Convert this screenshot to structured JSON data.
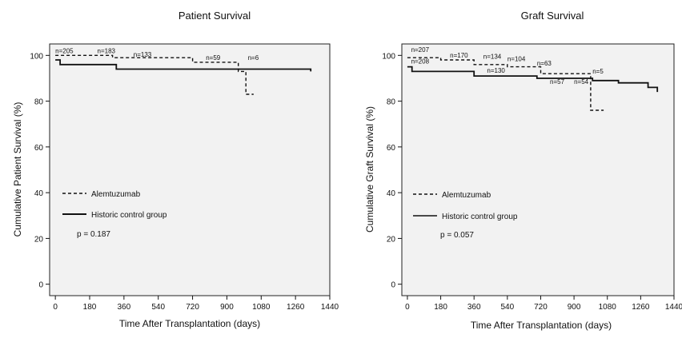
{
  "chart_data": [
    {
      "type": "line",
      "subtype": "kaplan-meier step plot",
      "title": "Patient Survival",
      "xlabel": "Time After Transplantation (days)",
      "ylabel": "Cumulative Patient Survival (%)",
      "xlim": [
        -30,
        1440
      ],
      "ylim": [
        -5,
        105
      ],
      "xticks": [
        0,
        180,
        360,
        540,
        720,
        900,
        1080,
        1260,
        1440
      ],
      "yticks": [
        0,
        20,
        40,
        60,
        80,
        100
      ],
      "grid": false,
      "legend_position": "lower-left",
      "pvalue": "p = 0.187",
      "series": [
        {
          "name": "Alemtuzumab",
          "style": "dashed",
          "points": [
            [
              0,
              100
            ],
            [
              300,
              100
            ],
            [
              300,
              99
            ],
            [
              720,
              99
            ],
            [
              720,
              97
            ],
            [
              960,
              97
            ],
            [
              960,
              93
            ],
            [
              1000,
              93
            ],
            [
              1000,
              83
            ],
            [
              1040,
              83
            ]
          ]
        },
        {
          "name": "Historic control group",
          "style": "solid",
          "points": [
            [
              0,
              98
            ],
            [
              25,
              98
            ],
            [
              25,
              96
            ],
            [
              320,
              96
            ],
            [
              320,
              94
            ],
            [
              1340,
              94
            ],
            [
              1340,
              93
            ]
          ]
        }
      ],
      "annotations": [
        {
          "text": "n=205",
          "x": 0,
          "y": 101
        },
        {
          "text": "n=183",
          "x": 220,
          "y": 101
        },
        {
          "text": "n=133",
          "x": 410,
          "y": 99.5
        },
        {
          "text": "n=59",
          "x": 790,
          "y": 98
        },
        {
          "text": "n=6",
          "x": 1010,
          "y": 98
        }
      ]
    },
    {
      "type": "line",
      "subtype": "kaplan-meier step plot",
      "title": "Graft Survival",
      "xlabel": "Time After Transplantation (days)",
      "ylabel": "Cumulative Graft Survival (%)",
      "xlim": [
        -30,
        1440
      ],
      "ylim": [
        -5,
        105
      ],
      "xticks": [
        0,
        180,
        360,
        540,
        720,
        900,
        1080,
        1260,
        1440
      ],
      "yticks": [
        0,
        20,
        40,
        60,
        80,
        100
      ],
      "grid": false,
      "legend_position": "lower-left",
      "pvalue": "p = 0.057",
      "series": [
        {
          "name": "Alemtuzumab",
          "style": "dashed",
          "points": [
            [
              0,
              99
            ],
            [
              180,
              99
            ],
            [
              180,
              98
            ],
            [
              360,
              98
            ],
            [
              360,
              96
            ],
            [
              540,
              96
            ],
            [
              540,
              95
            ],
            [
              720,
              95
            ],
            [
              720,
              92
            ],
            [
              990,
              92
            ],
            [
              990,
              76
            ],
            [
              1060,
              76
            ]
          ]
        },
        {
          "name": "Historic control group",
          "style": "solid",
          "points": [
            [
              0,
              95
            ],
            [
              25,
              95
            ],
            [
              25,
              93
            ],
            [
              360,
              93
            ],
            [
              360,
              91
            ],
            [
              700,
              91
            ],
            [
              700,
              90
            ],
            [
              1000,
              90
            ],
            [
              1000,
              89
            ],
            [
              1140,
              89
            ],
            [
              1140,
              88
            ],
            [
              1300,
              88
            ],
            [
              1300,
              86
            ],
            [
              1350,
              86
            ],
            [
              1350,
              84
            ]
          ]
        }
      ],
      "annotations": [
        {
          "text": "n=207",
          "x": 20,
          "y": 101.5
        },
        {
          "text": "n=208",
          "x": 20,
          "y": 96.5
        },
        {
          "text": "n=170",
          "x": 230,
          "y": 99
        },
        {
          "text": "n=134",
          "x": 410,
          "y": 98.5
        },
        {
          "text": "n=104",
          "x": 540,
          "y": 97.5
        },
        {
          "text": "n=130",
          "x": 430,
          "y": 92.5
        },
        {
          "text": "n=63",
          "x": 700,
          "y": 95.5
        },
        {
          "text": "n=5",
          "x": 1000,
          "y": 92
        },
        {
          "text": "n=57",
          "x": 770,
          "y": 87.5
        },
        {
          "text": "n=54",
          "x": 900,
          "y": 87.5
        }
      ]
    }
  ]
}
